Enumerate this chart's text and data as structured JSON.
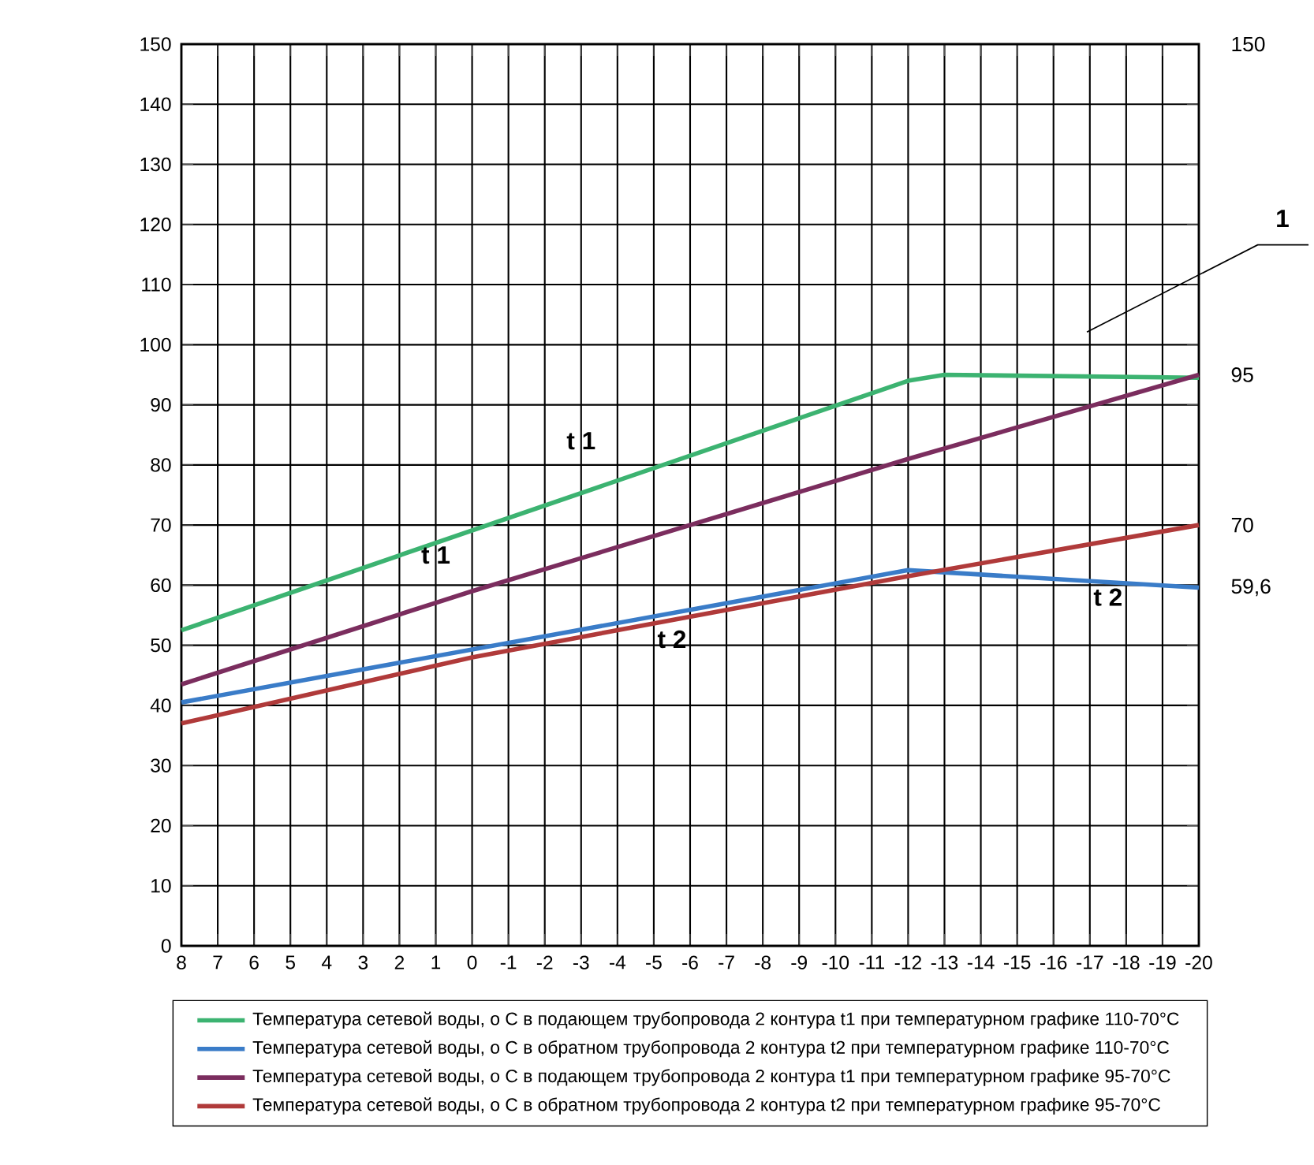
{
  "chart_data": {
    "type": "line",
    "series": [
      {
        "name": "Температура сетевой воды, о С в подающем трубопровода   2 контура       t1  при температурном графике       110-70°С",
        "color": "#3cb371",
        "x": [
          8,
          -12,
          -13,
          -20
        ],
        "values": [
          52.5,
          94,
          95,
          94.5
        ]
      },
      {
        "name": "Температура сетевой воды, о С в обратном трубопровода   2 контура       t2  при температурном графике       110-70°С",
        "color": "#3a7cc8",
        "x": [
          8,
          -12,
          -20
        ],
        "values": [
          40.5,
          62.5,
          59.6
        ]
      },
      {
        "name": "Температура сетевой воды, о С в подающем трубопровода   2 контура       t1  при температурном графике       95-70°С",
        "color": "#7b2d5e",
        "x": [
          8,
          0,
          -12,
          -20
        ],
        "values": [
          43.5,
          59,
          81,
          95
        ]
      },
      {
        "name": "Температура сетевой воды, о С в обратном трубопровода   2 контура       t2  при температурном графике       95-70°С",
        "color": "#b03a3a",
        "x": [
          8,
          0,
          -12,
          -20
        ],
        "values": [
          37,
          48,
          61.5,
          70
        ]
      }
    ],
    "xlim": [
      8,
      -20
    ],
    "xticks": [
      8,
      7,
      6,
      5,
      4,
      3,
      2,
      1,
      0,
      -1,
      -2,
      -3,
      -4,
      -5,
      -6,
      -7,
      -8,
      -9,
      -10,
      -11,
      -12,
      -13,
      -14,
      -15,
      -16,
      -17,
      -18,
      -19,
      -20
    ],
    "ylim": [
      0,
      150
    ],
    "yticks": [
      0,
      10,
      20,
      30,
      40,
      50,
      60,
      70,
      80,
      90,
      100,
      110,
      120,
      130,
      140,
      150
    ],
    "grid": true,
    "legend": "bottom",
    "marker": "none",
    "line_style": "solid",
    "annotations": [
      "t 1",
      "t 1",
      "t 2",
      "t 2",
      "1",
      "150",
      "95",
      "70",
      "59,6"
    ]
  }
}
